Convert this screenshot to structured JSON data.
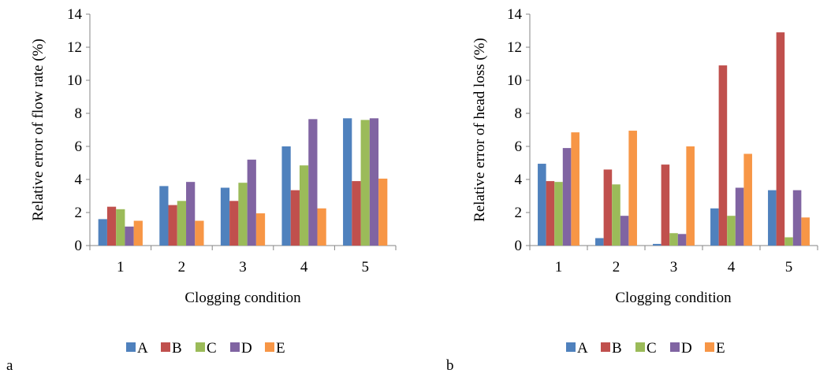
{
  "chart_data": [
    {
      "type": "bar",
      "panel_label": "a",
      "categories": [
        "1",
        "2",
        "3",
        "4",
        "5"
      ],
      "xlabel": "Clogging condition",
      "ylabel": "Relative error of flow rate (%)",
      "ylim": [
        0,
        14
      ],
      "yticks": [
        "0",
        "2",
        "4",
        "6",
        "8",
        "10",
        "12",
        "14"
      ],
      "grid": false,
      "legend_position": "bottom",
      "series": [
        {
          "name": "A",
          "color": "#4F81BD",
          "values": [
            1.6,
            3.6,
            3.5,
            6.0,
            7.7
          ]
        },
        {
          "name": "B",
          "color": "#C0504D",
          "values": [
            2.35,
            2.45,
            2.7,
            3.35,
            3.9
          ]
        },
        {
          "name": "C",
          "color": "#9BBB59",
          "values": [
            2.2,
            2.7,
            3.8,
            4.85,
            7.6
          ]
        },
        {
          "name": "D",
          "color": "#8064A2",
          "values": [
            1.15,
            3.85,
            5.2,
            7.65,
            7.7
          ]
        },
        {
          "name": "E",
          "color": "#F79646",
          "values": [
            1.5,
            1.5,
            1.95,
            2.25,
            4.05
          ]
        }
      ]
    },
    {
      "type": "bar",
      "panel_label": "b",
      "categories": [
        "1",
        "2",
        "3",
        "4",
        "5"
      ],
      "xlabel": "Clogging condition",
      "ylabel": "Relative error of head loss (%)",
      "ylim": [
        0,
        14
      ],
      "yticks": [
        "0",
        "2",
        "4",
        "6",
        "8",
        "10",
        "12",
        "14"
      ],
      "grid": false,
      "legend_position": "bottom",
      "series": [
        {
          "name": "A",
          "color": "#4F81BD",
          "values": [
            4.95,
            0.45,
            0.1,
            2.25,
            3.35
          ]
        },
        {
          "name": "B",
          "color": "#C0504D",
          "values": [
            3.9,
            4.6,
            4.9,
            10.9,
            12.9
          ]
        },
        {
          "name": "C",
          "color": "#9BBB59",
          "values": [
            3.85,
            3.7,
            0.75,
            1.8,
            0.5
          ]
        },
        {
          "name": "D",
          "color": "#8064A2",
          "values": [
            5.9,
            1.8,
            0.7,
            3.5,
            3.35
          ]
        },
        {
          "name": "E",
          "color": "#F79646",
          "values": [
            6.85,
            6.95,
            6.0,
            5.55,
            1.7
          ]
        }
      ]
    }
  ]
}
